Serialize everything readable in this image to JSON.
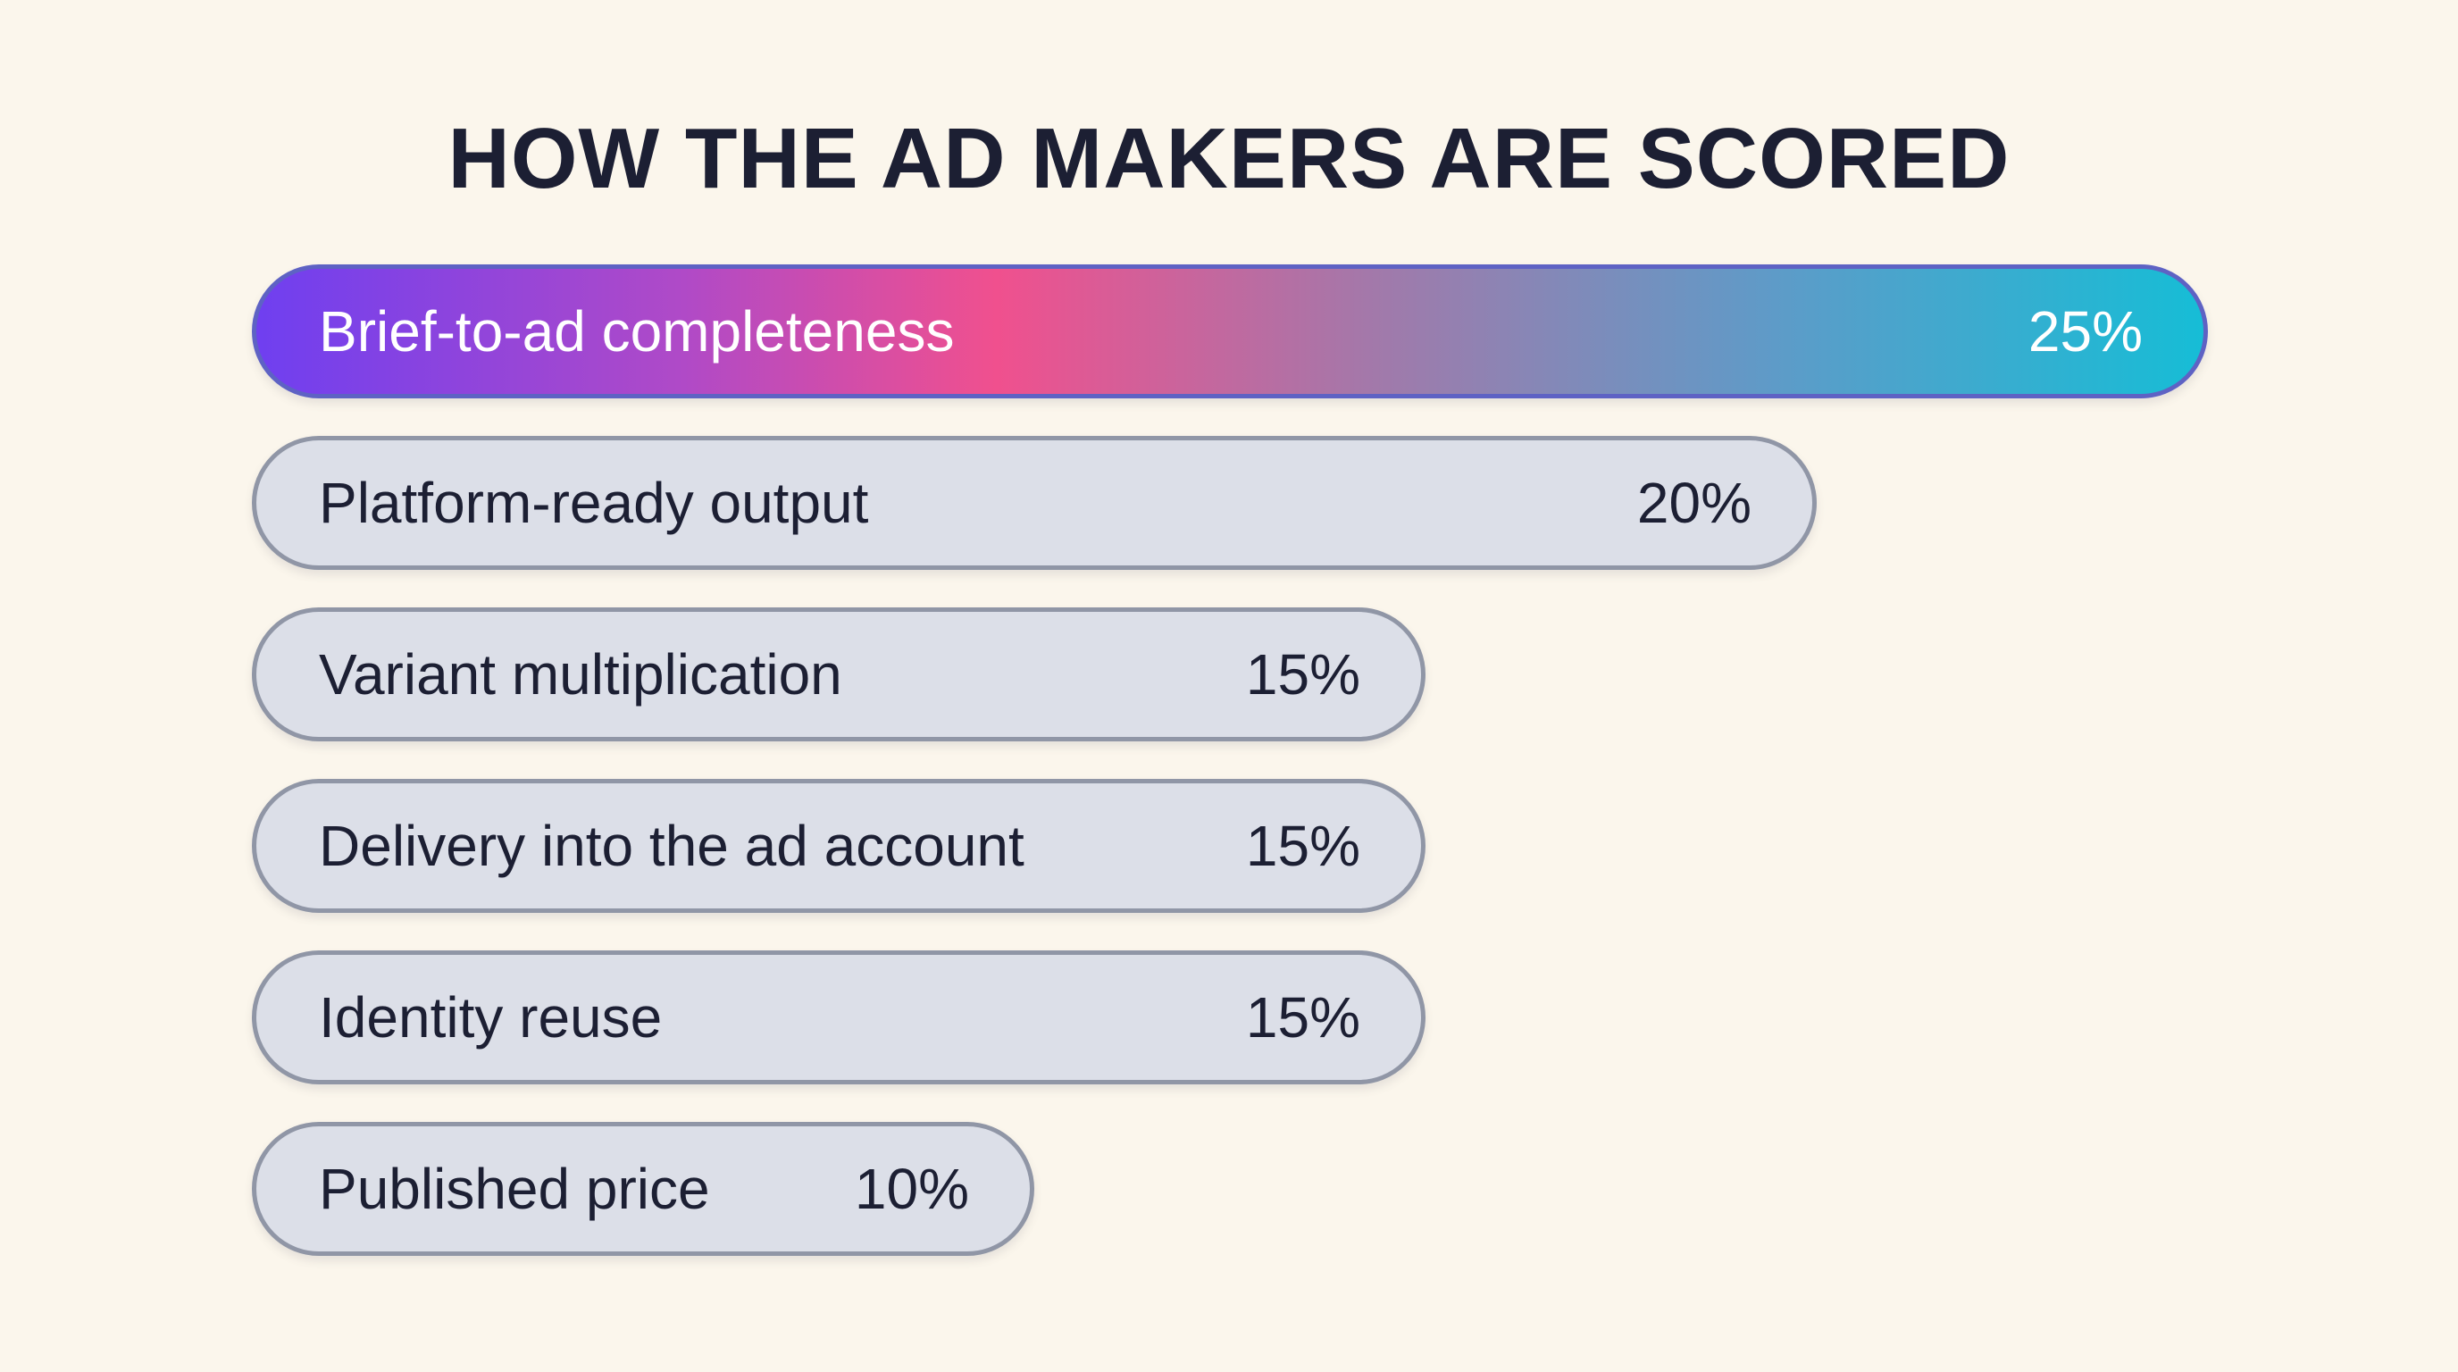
{
  "chart_data": {
    "type": "bar",
    "orientation": "horizontal",
    "title": "HOW THE AD MAKERS ARE SCORED",
    "unit": "%",
    "categories": [
      "Brief-to-ad completeness",
      "Platform-ready output",
      "Variant multiplication",
      "Delivery into the ad account",
      "Identity reuse",
      "Published price"
    ],
    "values": [
      25,
      20,
      15,
      15,
      15,
      10
    ],
    "value_labels": [
      "25%",
      "20%",
      "15%",
      "15%",
      "15%",
      "10%"
    ],
    "highlight_index": 0,
    "xlim": [
      0,
      25
    ],
    "grid": false,
    "legend": "none"
  },
  "colors": {
    "background": "#fbf6ec",
    "bar_fill": "#dcdfe8",
    "bar_border": "#9096a6",
    "title_text": "#1c1f33",
    "highlight_gradient": [
      "#6f3ff0",
      "#f0508e",
      "#16bdd6"
    ]
  }
}
